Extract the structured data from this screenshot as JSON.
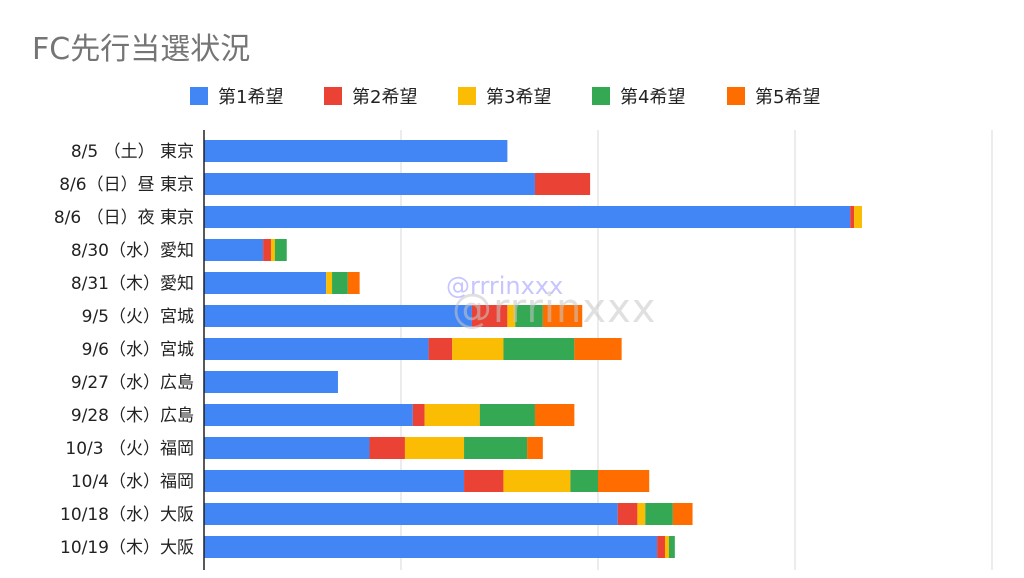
{
  "chart_data": {
    "type": "bar",
    "orientation": "horizontal",
    "stacked": true,
    "title": "FC先行当選状況",
    "legend_position": "top",
    "grid": true,
    "xlim": [
      0,
      200
    ],
    "categories": [
      "8/5 （土） 東京",
      "8/6（日）昼 東京",
      "8/6 （日）夜 東京",
      "8/30（水）愛知",
      "8/31（木）愛知",
      "9/5（火）宮城",
      "9/6（水）宮城",
      "9/27（水）広島",
      "9/28（木）広島",
      "10/3 （火）福岡",
      "10/4（水）福岡",
      "10/18（水）大阪",
      "10/19（木）大阪"
    ],
    "series": [
      {
        "name": "第1希望",
        "color": "#4285F4",
        "values": [
          77,
          84,
          164,
          15,
          31,
          68,
          57,
          34,
          53,
          42,
          66,
          105,
          115
        ]
      },
      {
        "name": "第2希望",
        "color": "#EA4335",
        "values": [
          0,
          14,
          1,
          2,
          0,
          9,
          6,
          0,
          3,
          9,
          10,
          5,
          2
        ]
      },
      {
        "name": "第3希望",
        "color": "#FBBC04",
        "values": [
          0,
          0,
          2,
          1,
          1.5,
          2,
          13,
          0,
          14,
          15,
          17,
          2,
          1
        ]
      },
      {
        "name": "第4希望",
        "color": "#34A853",
        "values": [
          0,
          0,
          0,
          3,
          4,
          7,
          18,
          0,
          14,
          16,
          7,
          7,
          1.5
        ]
      },
      {
        "name": "第5希望",
        "color": "#FF6D01",
        "values": [
          0,
          0,
          0,
          0,
          3,
          10,
          12,
          0,
          10,
          4,
          13,
          5,
          0
        ]
      }
    ]
  },
  "watermark": {
    "text": "@rrrinxxx"
  }
}
